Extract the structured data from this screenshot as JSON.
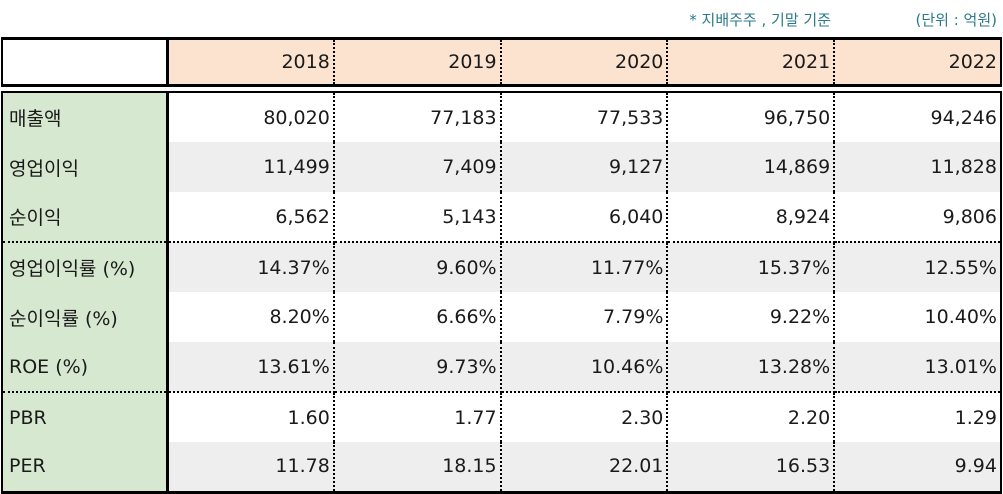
{
  "notes": {
    "basis": "* 지배주주 , 기말 기준",
    "unit": "(단위 : 억원)"
  },
  "table": {
    "columns": [
      "2018",
      "2019",
      "2020",
      "2021",
      "2022"
    ],
    "rows": [
      {
        "label": "매출액",
        "values": [
          "80,020",
          "77,183",
          "77,533",
          "96,750",
          "94,246"
        ]
      },
      {
        "label": "영업이익",
        "values": [
          "11,499",
          "7,409",
          "9,127",
          "14,869",
          "11,828"
        ]
      },
      {
        "label": "순이익",
        "values": [
          "6,562",
          "5,143",
          "6,040",
          "8,924",
          "9,806"
        ]
      },
      {
        "label": "영업이익률 (%)",
        "values": [
          "14.37%",
          "9.60%",
          "11.77%",
          "15.37%",
          "12.55%"
        ]
      },
      {
        "label": "순이익률 (%)",
        "values": [
          "8.20%",
          "6.66%",
          "7.79%",
          "9.22%",
          "10.40%"
        ]
      },
      {
        "label": "ROE (%)",
        "values": [
          "13.61%",
          "9.73%",
          "10.46%",
          "13.28%",
          "13.01%"
        ]
      },
      {
        "label": "PBR",
        "values": [
          "1.60",
          "1.77",
          "2.30",
          "2.20",
          "1.29"
        ]
      },
      {
        "label": "PER",
        "values": [
          "11.78",
          "18.15",
          "22.01",
          "16.53",
          "9.94"
        ]
      }
    ]
  },
  "colors": {
    "header_bg": "#fbe3d0",
    "label_bg": "#d6e8cf",
    "stripe_bg": "#eeeeee",
    "note_text": "#2b7a8c"
  }
}
